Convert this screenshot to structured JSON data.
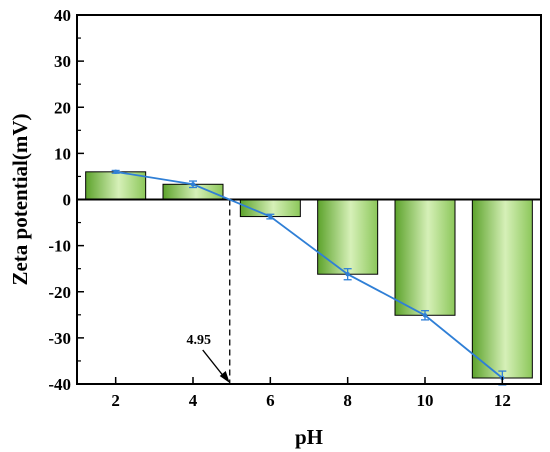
{
  "chart_data": {
    "type": "bar",
    "categories": [
      "2",
      "4",
      "6",
      "8",
      "10",
      "12"
    ],
    "x": [
      2,
      4,
      6,
      8,
      10,
      12
    ],
    "values": [
      6.0,
      3.3,
      -3.7,
      -16.2,
      -25.1,
      -38.7
    ],
    "errors": [
      0.3,
      0.7,
      0.5,
      1.2,
      1.0,
      1.5
    ],
    "xlabel": "pH",
    "ylabel": "Zeta potential(mV)",
    "ylim": [
      -40,
      40
    ],
    "xlim": [
      1,
      13
    ],
    "yticks": [
      "-40",
      "-30",
      "-20",
      "-10",
      "0",
      "10",
      "20",
      "30",
      "40"
    ],
    "xticks": [
      "2",
      "4",
      "6",
      "8",
      "10",
      "12"
    ],
    "grid": false,
    "legend": "none",
    "annotation": {
      "label": "4.95",
      "x": 4.95,
      "y": 0
    },
    "colors": {
      "bar_light": "#d6f0b8",
      "bar_dark": "#5da32c",
      "bar_edge": "#000000",
      "line": "#2f7fd6"
    }
  }
}
